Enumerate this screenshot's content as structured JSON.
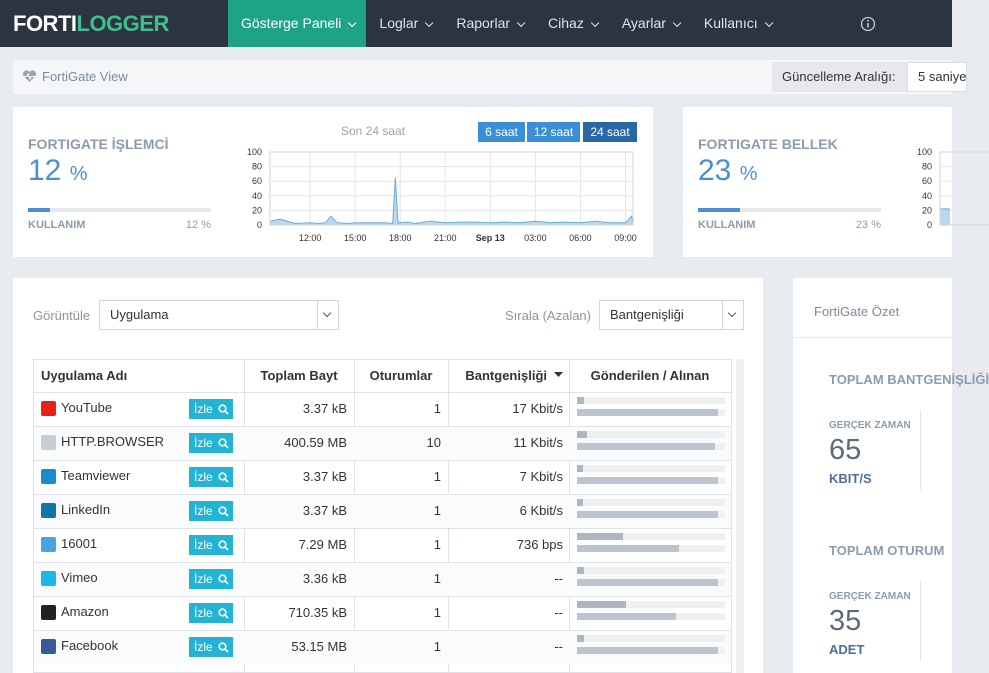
{
  "navbar": {
    "logo": {
      "part1": "FORTI",
      "part2": "LOGGER"
    },
    "items": [
      "Gösterge Paneli",
      "Loglar",
      "Raporlar",
      "Cihaz",
      "Ayarlar",
      "Kullanıcı"
    ],
    "active": 0
  },
  "subheader": {
    "title": "FortiGate View",
    "interval_label": "Güncelleme Aralığı:",
    "interval_value": "5 saniye"
  },
  "cpu_card": {
    "title": "FORTIGATE İŞLEMCİ",
    "value": 12,
    "unit": "%",
    "usage_label": "KULLANIM",
    "usage_text": "12 %"
  },
  "memory_card": {
    "title": "FORTIGATE BELLEK",
    "value": 23,
    "unit": "%",
    "usage_label": "KULLANIM",
    "usage_text": "23 %"
  },
  "chart_data": [
    {
      "type": "area",
      "title": "Son 24 saat",
      "ranges": [
        "6 saat",
        "12 saat",
        "24 saat"
      ],
      "active_range": 2,
      "color": "#6aaed6",
      "grid": true,
      "x": [
        9.33,
        10,
        11,
        12,
        12.5,
        13,
        13.4,
        13.8,
        14.5,
        15,
        16,
        17,
        17.5,
        17.67,
        17.85,
        18.5,
        19,
        20,
        21,
        22,
        23,
        24,
        25,
        26,
        27,
        28,
        29,
        30,
        31,
        32,
        33,
        33.4,
        33.5
      ],
      "values": [
        5,
        8,
        2,
        3,
        2,
        3,
        12,
        3,
        2,
        3,
        3,
        3,
        2,
        65,
        3,
        4,
        2,
        5,
        3,
        4,
        4,
        3,
        4,
        3,
        5,
        3,
        4,
        3,
        5,
        3,
        3,
        12,
        3
      ],
      "xlim": [
        9.33,
        33.5
      ],
      "ylim": [
        0,
        100
      ],
      "yticks": [
        0,
        20,
        40,
        60,
        80,
        100
      ],
      "xticks": [
        {
          "value": 12,
          "label": "12:00"
        },
        {
          "value": 15,
          "label": "15:00"
        },
        {
          "value": 18,
          "label": "18:00"
        },
        {
          "value": 21,
          "label": "21:00"
        },
        {
          "value": 24,
          "label": "Sep 13"
        },
        {
          "value": 27,
          "label": "03:00"
        },
        {
          "value": 30,
          "label": "06:00"
        },
        {
          "value": 33,
          "label": "09:00"
        }
      ]
    },
    {
      "type": "area",
      "color": "#6aaed6",
      "grid": true,
      "x": [
        9.33,
        10
      ],
      "values": [
        22,
        22
      ],
      "xlim": [
        9.33,
        33.5
      ],
      "ylim": [
        0,
        100
      ],
      "yticks": [
        0,
        20,
        40,
        60,
        80,
        100
      ]
    }
  ],
  "table_card": {
    "view_label": "Görüntüle",
    "view_value": "Uygulama",
    "sort_label": "Sırala (Azalan)",
    "sort_value": "Bantgenişliği",
    "columns": [
      "Uygulama Adı",
      "Toplam Bayt",
      "Oturumlar",
      "Bantgenişliği",
      "Gönderilen / Alınan"
    ],
    "action": "İzle",
    "rows": [
      {
        "name": "YouTube",
        "bytes": "3.37 kB",
        "sessions": "1",
        "bandwidth": "17 Kbit/s",
        "sent": 5,
        "received": 95
      },
      {
        "name": "HTTP.BROWSER",
        "bytes": "400.59 MB",
        "sessions": "10",
        "bandwidth": "11 Kbit/s",
        "sent": 7,
        "received": 93
      },
      {
        "name": "Teamviewer",
        "bytes": "3.37 kB",
        "sessions": "1",
        "bandwidth": "7 Kbit/s",
        "sent": 4,
        "received": 95
      },
      {
        "name": "LinkedIn",
        "bytes": "3.37 kB",
        "sessions": "1",
        "bandwidth": "6 Kbit/s",
        "sent": 4,
        "received": 95
      },
      {
        "name": "16001",
        "bytes": "7.29 MB",
        "sessions": "1",
        "bandwidth": "736 bps",
        "sent": 31,
        "received": 69
      },
      {
        "name": "Vimeo",
        "bytes": "3.36 kB",
        "sessions": "1",
        "bandwidth": "--",
        "sent": 5,
        "received": 95
      },
      {
        "name": "Amazon",
        "bytes": "710.35 kB",
        "sessions": "1",
        "bandwidth": "--",
        "sent": 33,
        "received": 67
      },
      {
        "name": "Facebook",
        "bytes": "53.15 MB",
        "sessions": "1",
        "bandwidth": "--",
        "sent": 5,
        "received": 95
      }
    ]
  },
  "summary_card": {
    "title": "FortiGate Özet",
    "sections": [
      {
        "title": "TOPLAM BANTGENİŞLİĞİ",
        "label": "GERÇEK ZAMAN",
        "value": 65,
        "unit": "KBIT/S"
      },
      {
        "title": "TOPLAM OTURUM",
        "label": "GERÇEK ZAMAN",
        "value": 35,
        "unit": "ADET"
      }
    ]
  }
}
